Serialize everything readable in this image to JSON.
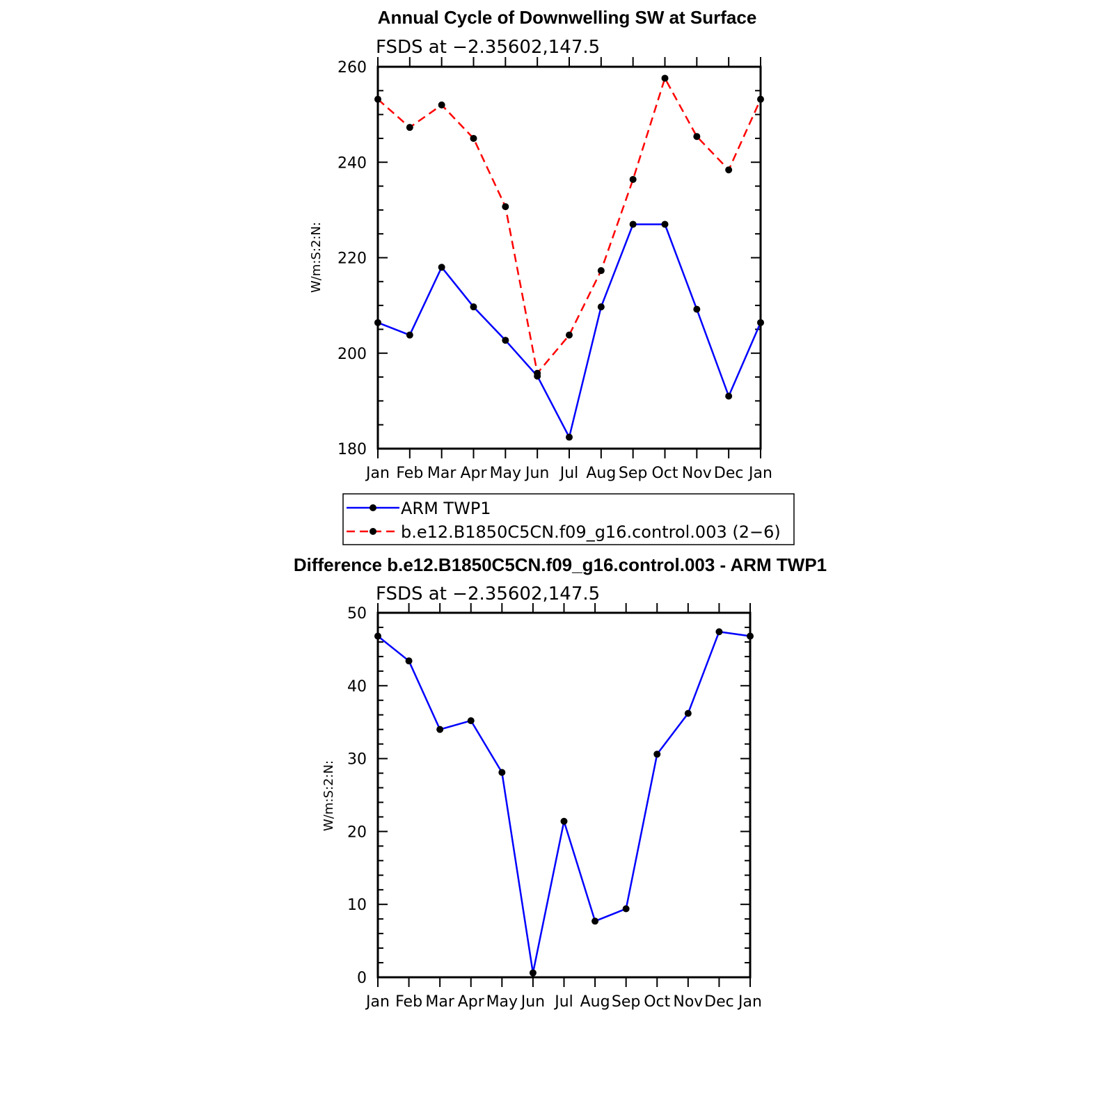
{
  "chart_data": [
    {
      "type": "line",
      "title": "Annual Cycle of Downwelling SW at Surface",
      "subtitle": "FSDS at −2.35602,147.5",
      "ylabel": "W/m:S:2:N:",
      "ylim": [
        180,
        260
      ],
      "yticks": [
        "180",
        "200",
        "220",
        "240",
        "260"
      ],
      "categories": [
        "Jan",
        "Feb",
        "Mar",
        "Apr",
        "May",
        "Jun",
        "Jul",
        "Aug",
        "Sep",
        "Oct",
        "Nov",
        "Dec",
        "Jan"
      ],
      "grid": false,
      "legend_position": "below",
      "series": [
        {
          "name": "ARM TWP1",
          "color": "#0000ff",
          "dash": "solid",
          "values": [
            206.4,
            203.8,
            218.0,
            209.7,
            202.7,
            195.2,
            182.4,
            209.7,
            227.0,
            227.0,
            209.2,
            191.0,
            206.4
          ]
        },
        {
          "name": "b.e12.B1850C5CN.f09_g16.control.003 (2−6)",
          "color": "#ff0000",
          "dash": "dashed",
          "values": [
            253.2,
            247.3,
            252.0,
            245.0,
            230.7,
            195.8,
            203.8,
            217.3,
            236.4,
            257.6,
            245.4,
            238.4,
            253.2
          ]
        }
      ]
    },
    {
      "type": "line",
      "title": "Difference b.e12.B1850C5CN.f09_g16.control.003 - ARM TWP1",
      "subtitle": "FSDS at −2.35602,147.5",
      "ylabel": "W/m:S:2:N:",
      "ylim": [
        0,
        50
      ],
      "yticks": [
        "0",
        "10",
        "20",
        "30",
        "40",
        "50"
      ],
      "categories": [
        "Jan",
        "Feb",
        "Mar",
        "Apr",
        "May",
        "Jun",
        "Jul",
        "Aug",
        "Sep",
        "Oct",
        "Nov",
        "Dec",
        "Jan"
      ],
      "grid": false,
      "series": [
        {
          "color": "#0000ff",
          "dash": "solid",
          "values": [
            46.8,
            43.4,
            34.0,
            35.2,
            28.1,
            0.6,
            21.4,
            7.7,
            9.4,
            30.6,
            36.2,
            47.4,
            46.8
          ]
        }
      ]
    }
  ]
}
